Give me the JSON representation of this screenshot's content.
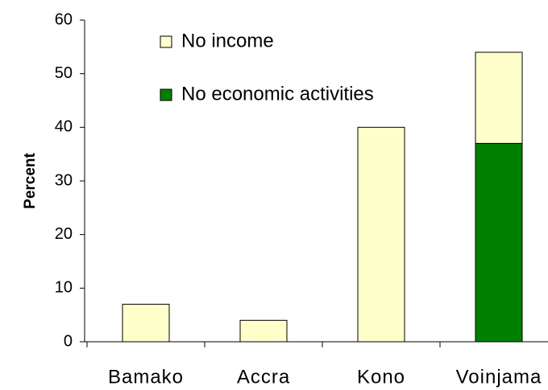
{
  "chart_data": {
    "type": "stacked_bar",
    "y_label": "Percent",
    "categories": [
      "Bamako",
      "Accra",
      "Kono",
      "Voinjama"
    ],
    "series": [
      {
        "name": "No income",
        "color": "#ffffcc",
        "values": [
          7,
          4,
          40,
          17
        ]
      },
      {
        "name": "No economic activities",
        "color": "#008000",
        "values": [
          null,
          null,
          null,
          37
        ]
      }
    ],
    "ylim": [
      0,
      60
    ],
    "yticks": [
      0,
      10,
      20,
      30,
      40,
      50,
      60
    ],
    "grid": false,
    "legend": "top-left"
  }
}
